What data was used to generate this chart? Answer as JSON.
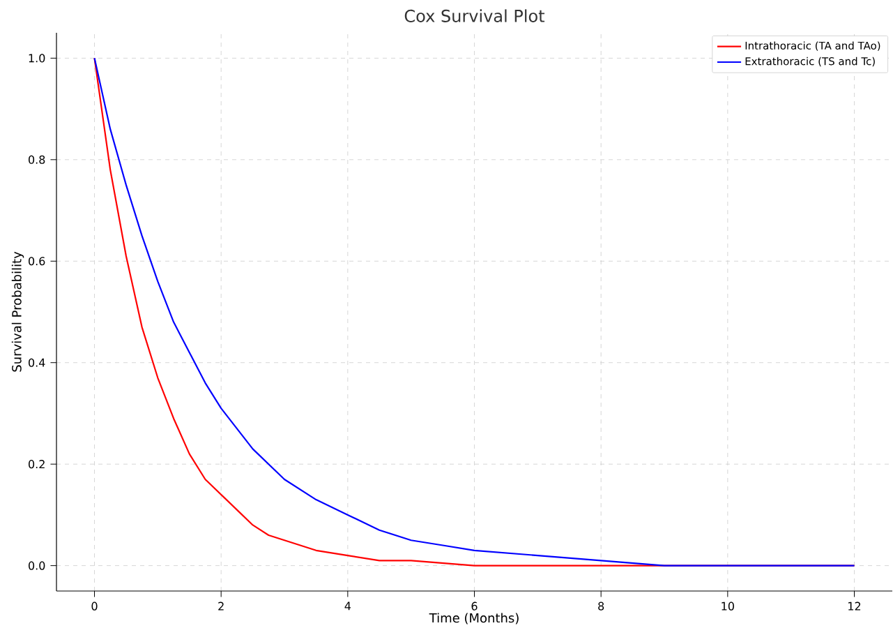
{
  "chart_data": {
    "type": "line",
    "title": "Cox Survival Plot",
    "xlabel": "Time (Months)",
    "ylabel": "Survival Probability",
    "xlim": [
      -0.6,
      12.6
    ],
    "ylim": [
      -0.05,
      1.05
    ],
    "xticks": [
      0,
      2,
      4,
      6,
      8,
      10,
      12
    ],
    "yticks": [
      {
        "value": 0,
        "label": "0.0"
      },
      0.2,
      0.4,
      0.6,
      0.8,
      {
        "value": 1,
        "label": "1.0"
      }
    ],
    "grid": true,
    "legend": "top right",
    "marker": "none",
    "line_style": "solid",
    "series": [
      {
        "name": "Intrathoracic (TA and TAo)",
        "color": "#ff0000",
        "x": [
          0,
          0.25,
          0.5,
          0.75,
          1,
          1.25,
          1.5,
          1.75,
          2,
          2.25,
          2.5,
          2.75,
          3,
          3.5,
          4,
          4.5,
          5,
          6,
          8,
          10,
          12
        ],
        "values": [
          1.0,
          0.78,
          0.61,
          0.47,
          0.37,
          0.29,
          0.22,
          0.17,
          0.14,
          0.11,
          0.08,
          0.06,
          0.05,
          0.03,
          0.02,
          0.01,
          0.01,
          0.0,
          0.0,
          0.0,
          0.0
        ]
      },
      {
        "name": "Extrathoracic (TS and Tc)",
        "color": "#0000ff",
        "x": [
          0,
          0.25,
          0.5,
          0.75,
          1,
          1.25,
          1.5,
          1.75,
          2,
          2.25,
          2.5,
          3,
          3.5,
          4,
          4.5,
          5,
          5.5,
          6,
          7,
          8,
          9,
          10,
          12
        ],
        "values": [
          1.0,
          0.86,
          0.75,
          0.65,
          0.56,
          0.48,
          0.42,
          0.36,
          0.31,
          0.27,
          0.23,
          0.17,
          0.13,
          0.1,
          0.07,
          0.05,
          0.04,
          0.03,
          0.02,
          0.01,
          0.0,
          0.0,
          0.0
        ]
      }
    ]
  }
}
